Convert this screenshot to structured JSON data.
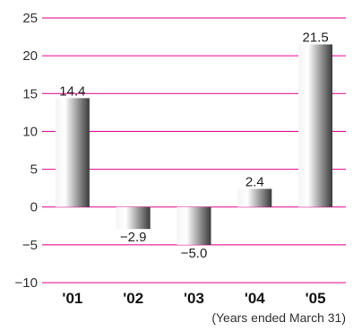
{
  "chart_data": {
    "type": "bar",
    "categories": [
      "'01",
      "'02",
      "'03",
      "'04",
      "'05"
    ],
    "values": [
      14.4,
      -2.9,
      -5.0,
      2.4,
      21.5
    ],
    "data_labels": [
      "14.4",
      "−2.9",
      "−5.0",
      "2.4",
      "21.5"
    ],
    "yticks": [
      25,
      20,
      15,
      10,
      5,
      0,
      -5,
      -10
    ],
    "ytick_labels": [
      "25",
      "20",
      "15",
      "10",
      "5",
      "0",
      "−5",
      "−10"
    ],
    "ylim": [
      -10,
      25
    ],
    "note": "(Years ended March 31)",
    "grid": true,
    "grid_color": "#e0008a",
    "bar_color_light": "#f4f4f4",
    "bar_color_dark": "#3a3a3a"
  }
}
